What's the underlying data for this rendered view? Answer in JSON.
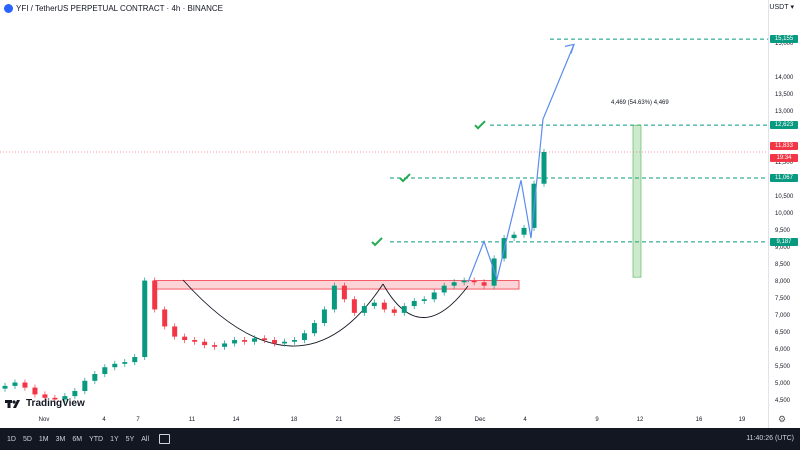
{
  "header": {
    "title": "YFI / TetherUS PERPETUAL CONTRACT · 4h · BINANCE",
    "currency": "USDT"
  },
  "price_axis": {
    "ticks": [
      "15,000",
      "14,000",
      "13,500",
      "13,000",
      "11,500",
      "10,500",
      "10,000",
      "9,500",
      "9,000",
      "8,500",
      "8,000",
      "7,500",
      "7,000",
      "6,500",
      "6,000",
      "5,500",
      "5,000",
      "4,500"
    ],
    "tags": [
      {
        "label": "15,155",
        "color": "#089981"
      },
      {
        "label": "12,623",
        "color": "#089981"
      },
      {
        "label": "11,833",
        "color": "#f23645"
      },
      {
        "label": "19:34",
        "color": "#f23645"
      },
      {
        "label": "11,067",
        "color": "#089981"
      },
      {
        "label": "9,187",
        "color": "#089981"
      }
    ]
  },
  "time_axis": {
    "ticks": [
      "Nov",
      "4",
      "7",
      "11",
      "14",
      "18",
      "21",
      "25",
      "28",
      "Dec",
      "4",
      "9",
      "12",
      "16",
      "19"
    ]
  },
  "measure_label": "4,469 (54.63%) 4,469",
  "logo_text": "TradingView",
  "toolbar": {
    "timeframes": [
      "1D",
      "5D",
      "1M",
      "3M",
      "6M",
      "YTD",
      "1Y",
      "5Y",
      "All"
    ],
    "clock": "11:40:26 (UTC)"
  },
  "chart_data": {
    "type": "candlestick",
    "symbol": "YFI / TetherUS PERPETUAL CONTRACT",
    "interval": "4h",
    "exchange": "BINANCE",
    "ylim": [
      4300,
      15600
    ],
    "x_ticks": [
      "Nov",
      "4",
      "7",
      "11",
      "14",
      "18",
      "21",
      "25",
      "28",
      "Dec",
      "4",
      "9",
      "12",
      "16",
      "19"
    ],
    "close_price_path": [
      4950,
      5050,
      4900,
      4700,
      4600,
      4550,
      4650,
      4800,
      5100,
      5300,
      5500,
      5600,
      5650,
      5800,
      8050,
      7200,
      6700,
      6400,
      6300,
      6250,
      6150,
      6100,
      6200,
      6300,
      6250,
      6350,
      6300,
      6200,
      6250,
      6300,
      6500,
      6800,
      7200,
      7900,
      7500,
      7100,
      7300,
      7400,
      7200,
      7100,
      7300,
      7450,
      7500,
      7700,
      7900,
      8000,
      8050,
      8000,
      7900,
      8700,
      9300,
      9400,
      9600,
      10900,
      11833
    ],
    "levels": [
      {
        "label": "15,155",
        "value": 15155
      },
      {
        "label": "12,623",
        "value": 12623
      },
      {
        "label": "11,067",
        "value": 11067
      },
      {
        "label": "9,187",
        "value": 9187
      }
    ],
    "current_price": 11833,
    "resistance_zone": [
      7800,
      8050
    ],
    "measurement": "4,469 (54.63%) 4,469",
    "projection_path": [
      8000,
      9200,
      8100,
      11000,
      9300,
      12800,
      15000
    ],
    "grid": false
  }
}
